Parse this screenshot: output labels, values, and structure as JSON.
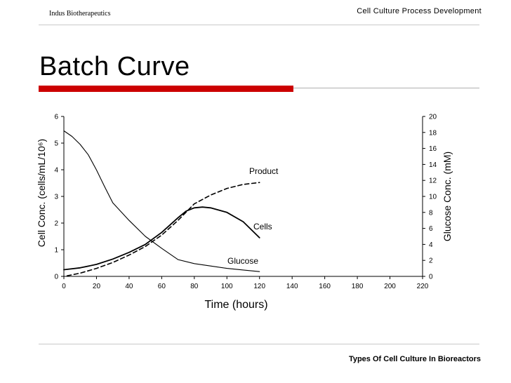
{
  "slide": {
    "header_left": "Indus Biotherapeutics",
    "header_right": "Cell Culture Process Development",
    "title": "Batch Curve",
    "footer": "Types Of Cell Culture In Bioreactors",
    "accent_color": "#cc0000"
  },
  "chart_data": {
    "type": "line",
    "title": "",
    "xlabel": "Time (hours)",
    "ylabel": "Cell Conc. (cells/mL/10⁶)",
    "y2label": "Glucose Conc. (mM)",
    "xlim": [
      0,
      220
    ],
    "ylim": [
      0,
      6
    ],
    "y2lim": [
      0,
      20
    ],
    "x_ticks": [
      0,
      20,
      40,
      60,
      80,
      100,
      120,
      140,
      160,
      180,
      200,
      220
    ],
    "y_ticks": [
      0,
      1,
      2,
      3,
      4,
      5,
      6
    ],
    "y2_ticks": [
      0,
      2,
      4,
      6,
      8,
      10,
      12,
      14,
      16,
      18,
      20
    ],
    "grid": false,
    "legend": "inline labels",
    "series": [
      {
        "name": "Cells",
        "axis": "left",
        "style": "solid",
        "x": [
          0,
          10,
          20,
          30,
          40,
          50,
          60,
          70,
          75,
          80,
          85,
          90,
          100,
          110,
          120
        ],
        "values": [
          0.25,
          0.32,
          0.45,
          0.65,
          0.9,
          1.2,
          1.65,
          2.2,
          2.45,
          2.57,
          2.6,
          2.57,
          2.4,
          2.05,
          1.45
        ]
      },
      {
        "name": "Product",
        "axis": "left",
        "style": "dashed",
        "x": [
          2,
          10,
          20,
          30,
          40,
          50,
          60,
          70,
          80,
          90,
          100,
          110,
          120
        ],
        "values": [
          0.02,
          0.12,
          0.3,
          0.52,
          0.8,
          1.12,
          1.55,
          2.1,
          2.72,
          3.05,
          3.3,
          3.45,
          3.52
        ]
      },
      {
        "name": "Glucose",
        "axis": "right",
        "style": "solid",
        "x": [
          0,
          5,
          10,
          15,
          20,
          25,
          30,
          40,
          50,
          60,
          70,
          80,
          90,
          100,
          110,
          120
        ],
        "values": [
          18.2,
          17.5,
          16.5,
          15.2,
          13.3,
          11.2,
          9.2,
          7.0,
          5.0,
          3.5,
          2.1,
          1.6,
          1.3,
          1.0,
          0.8,
          0.6
        ]
      }
    ]
  }
}
